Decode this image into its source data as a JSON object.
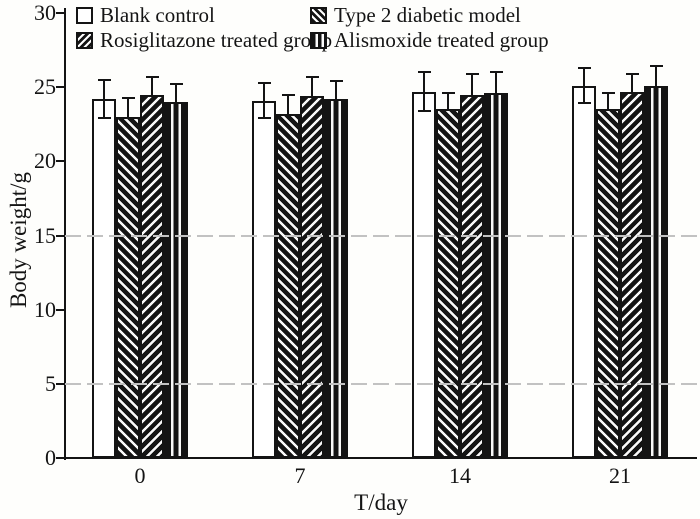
{
  "chart_data": {
    "type": "bar",
    "title": "",
    "xlabel": "T/day",
    "ylabel": "Body weight/g",
    "ylim": [
      0,
      30
    ],
    "yticks": [
      0,
      5,
      10,
      15,
      20,
      25,
      30
    ],
    "xticks": [
      "0",
      "7",
      "14",
      "21"
    ],
    "categories": [
      "0",
      "7",
      "14",
      "21"
    ],
    "faint_guide_values": [
      5,
      15
    ],
    "legend_position": "top-inside-two-columns",
    "ink_color": "#141414",
    "guide_color": "#c2c2c2",
    "series": [
      {
        "name": "Blank control",
        "pattern": "blank",
        "values": [
          24.2,
          24.1,
          24.7,
          25.1
        ],
        "errors": [
          1.3,
          1.2,
          1.3,
          1.2
        ]
      },
      {
        "name": "Type 2 diabetic model",
        "pattern": "back-hatch",
        "values": [
          23.0,
          23.2,
          23.5,
          23.5
        ],
        "errors": [
          1.3,
          1.3,
          1.1,
          1.1
        ]
      },
      {
        "name": "Rosiglitazone treated group",
        "pattern": "fwd-hatch",
        "values": [
          24.5,
          24.4,
          24.5,
          24.7
        ],
        "errors": [
          1.2,
          1.3,
          1.4,
          1.2
        ]
      },
      {
        "name": "Alismoxide treated group",
        "pattern": "vertical-stripe",
        "values": [
          24.0,
          24.2,
          24.6,
          25.1
        ],
        "errors": [
          1.2,
          1.2,
          1.4,
          1.3
        ]
      }
    ]
  }
}
